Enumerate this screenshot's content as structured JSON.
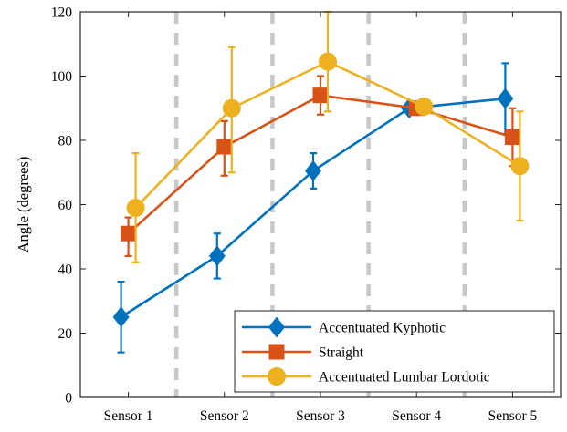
{
  "chart_data": {
    "type": "line",
    "categories": [
      "Sensor 1",
      "Sensor 2",
      "Sensor 3",
      "Sensor 4",
      "Sensor 5"
    ],
    "ylabel": "Angle (degrees)",
    "xlabel": "",
    "ylim": [
      0,
      120
    ],
    "yticks": [
      0,
      20,
      40,
      60,
      80,
      100,
      120
    ],
    "grid": false,
    "separators": "dashed-gray-between-categories",
    "legend_position": "bottom-right",
    "error_bars": true,
    "series": [
      {
        "name": "Accentuated Kyphotic",
        "color": "#0072BD",
        "marker": "diamond",
        "values": [
          25,
          44,
          70.5,
          90,
          93
        ],
        "err_low": [
          14,
          37,
          65,
          89,
          82
        ],
        "err_high": [
          36,
          51,
          76,
          91,
          104
        ]
      },
      {
        "name": "Straight",
        "color": "#D95319",
        "marker": "square",
        "values": [
          51,
          78,
          94,
          90,
          81
        ],
        "err_low": [
          44,
          69,
          88,
          89,
          72
        ],
        "err_high": [
          56,
          86,
          100,
          91,
          90
        ]
      },
      {
        "name": "Accentuated Lumbar Lordotic",
        "color": "#EDB120",
        "marker": "circle",
        "values": [
          59,
          90,
          104.5,
          90.5,
          72
        ],
        "err_low": [
          42,
          70,
          89,
          89,
          55
        ],
        "err_high": [
          76,
          109,
          120,
          92,
          89
        ]
      }
    ]
  }
}
